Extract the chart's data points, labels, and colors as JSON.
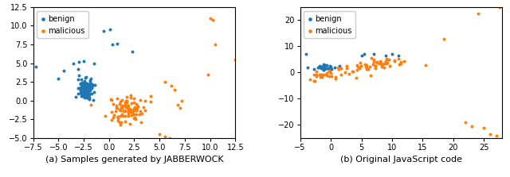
{
  "plot1": {
    "title": "(a) Samples generated by JABBERWOCK",
    "xlim": [
      -7.5,
      12.5
    ],
    "ylim": [
      -5.0,
      12.5
    ],
    "xticks": [
      -7.5,
      -5.0,
      -2.5,
      0.0,
      2.5,
      5.0,
      7.5,
      10.0,
      12.5
    ],
    "yticks": [
      -5.0,
      -2.5,
      0.0,
      2.5,
      5.0,
      7.5,
      10.0,
      12.5
    ]
  },
  "plot2": {
    "title": "(b) Original JavaScript code",
    "xlim": [
      -5.0,
      28.0
    ],
    "ylim": [
      -25.0,
      25.0
    ],
    "xticks": [
      -5,
      0,
      5,
      10,
      15,
      20,
      25
    ],
    "yticks": [
      -20,
      -10,
      0,
      10,
      20
    ]
  },
  "benign_color": "#1f77b4",
  "malicious_color": "#ff7f0e",
  "marker_size": 8,
  "legend_fontsize": 7,
  "tick_fontsize": 7,
  "label_fontsize": 8,
  "seed1": 42,
  "seed2": 99
}
